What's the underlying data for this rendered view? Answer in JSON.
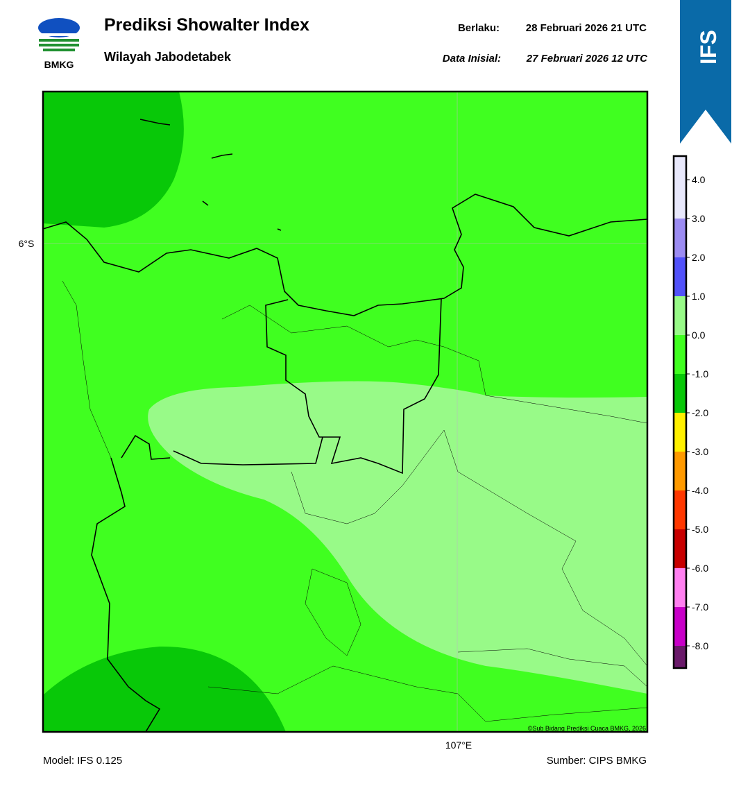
{
  "header": {
    "logo_text": "BMKG",
    "title": "Prediksi Showalter Index",
    "subtitle": "Wilayah Jabodetabek",
    "valid_label": "Berlaku:",
    "valid_time": "28 Februari 2026 21 UTC",
    "init_label": "Data Inisial:",
    "init_time": "27 Februari 2026 12 UTC",
    "banner": "IFS"
  },
  "map": {
    "lat_label": "6°S",
    "lon_label": "107°E",
    "credit": "©Sub Bidang Prediksi Cuaca BMKG, 2026"
  },
  "colorbar": {
    "labels": [
      "4.0",
      "3.0",
      "2.0",
      "1.0",
      "0.0",
      "-1.0",
      "-2.0",
      "-3.0",
      "-4.0",
      "-5.0",
      "-6.0",
      "-7.0",
      "-8.0"
    ],
    "colors": [
      "#e8e8fb",
      "#9c8cf2",
      "#5252fa",
      "#98fa88",
      "#40ff20",
      "#08c808",
      "#fff000",
      "#ff9a00",
      "#ff3800",
      "#c80000",
      "#ff80f0",
      "#c800c8",
      "#6a1a6a"
    ]
  },
  "footer": {
    "model": "Model: IFS 0.125",
    "source": "Sumber: CIPS BMKG"
  }
}
